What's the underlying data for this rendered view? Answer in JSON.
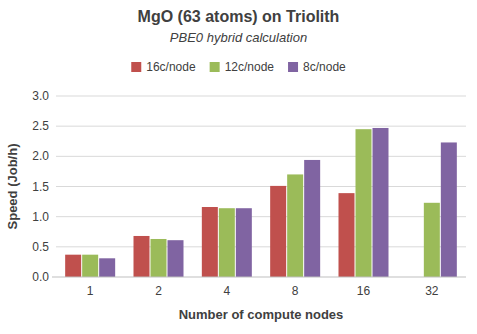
{
  "chart_data": {
    "type": "bar",
    "title": "MgO (63 atoms) on Triolith",
    "subtitle": "PBE0 hybrid calculation",
    "x_label": "Number of compute nodes",
    "y_label": "Speed (Job/h)",
    "categories": [
      "1",
      "2",
      "4",
      "8",
      "16",
      "32"
    ],
    "series": [
      {
        "name": "16c/node",
        "color": "#c0504d",
        "values": [
          0.37,
          0.68,
          1.16,
          1.51,
          1.39,
          null
        ]
      },
      {
        "name": "12c/node",
        "color": "#9bbb59",
        "values": [
          0.37,
          0.63,
          1.14,
          1.7,
          2.45,
          1.23
        ]
      },
      {
        "name": "8c/node",
        "color": "#8064a2",
        "values": [
          0.31,
          0.61,
          1.14,
          1.94,
          2.47,
          2.23
        ]
      }
    ],
    "ylim": [
      0,
      3
    ],
    "yticks": [
      {
        "value": 0,
        "label": "0.0"
      },
      0.5,
      {
        "value": 1,
        "label": "1.0"
      },
      1.5,
      {
        "value": 2,
        "label": "2.0"
      },
      2.5,
      {
        "value": 3,
        "label": "3.0"
      }
    ],
    "grid": true,
    "legend": "top"
  }
}
